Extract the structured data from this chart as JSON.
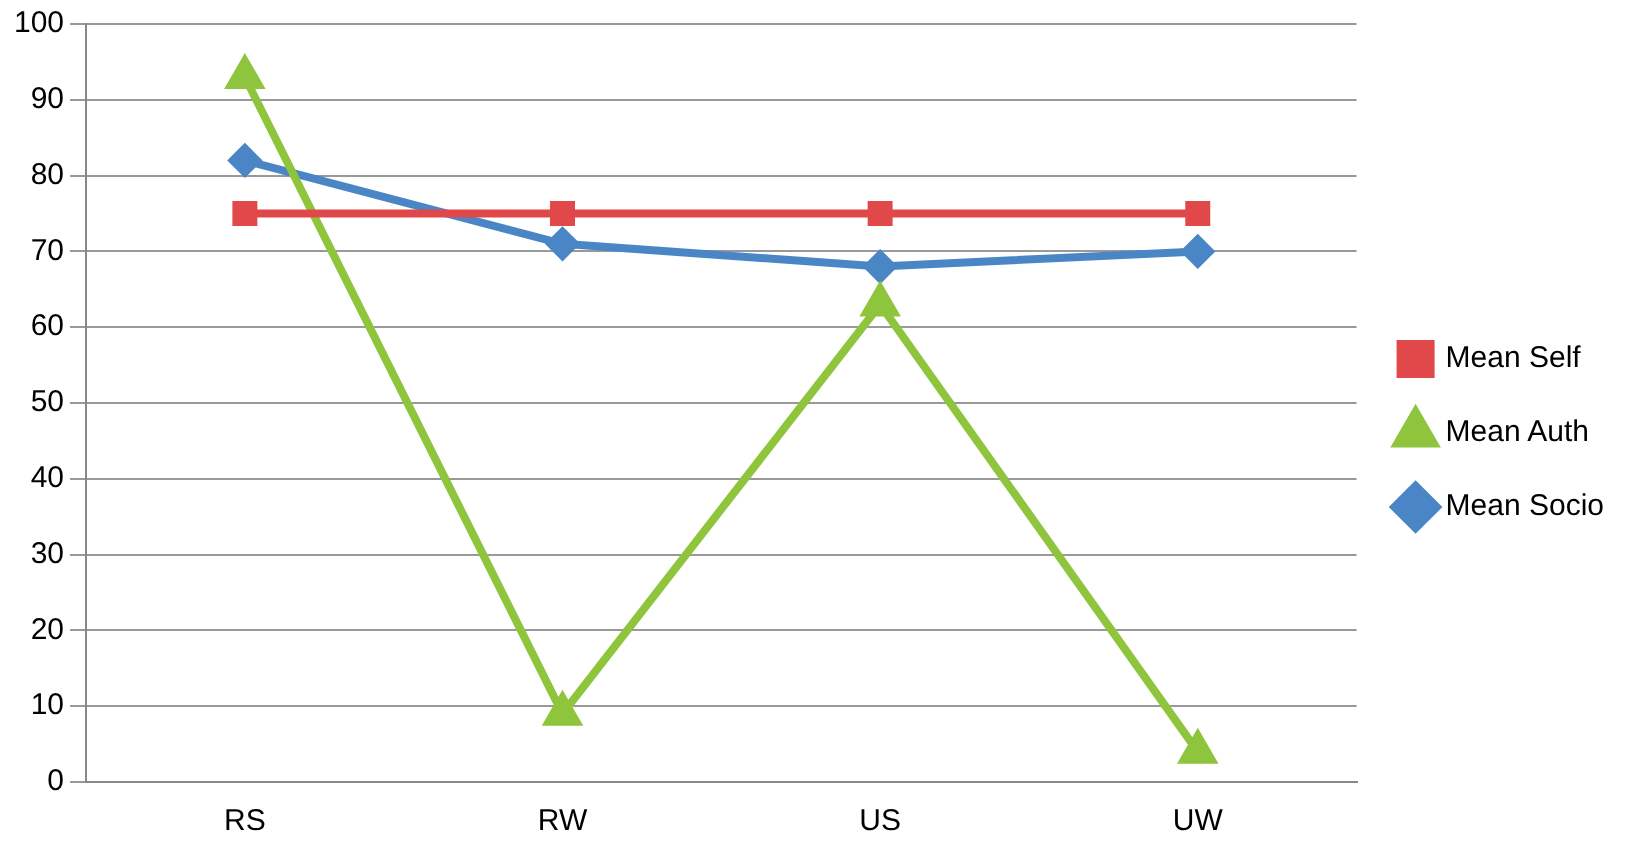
{
  "chart_data": {
    "type": "line",
    "categories": [
      "RS",
      "RW",
      "US",
      "UW"
    ],
    "series": [
      {
        "name": "Mean Self",
        "color": "#e0484a",
        "values": [
          75,
          75,
          75,
          75
        ],
        "marker": "square"
      },
      {
        "name": "Mean Auth",
        "color": "#8fc43d",
        "values": [
          93,
          9,
          63,
          4
        ],
        "marker": "triangle"
      },
      {
        "name": "Mean Socio",
        "color": "#4a86c5",
        "values": [
          82,
          71,
          68,
          70
        ],
        "marker": "diamond"
      }
    ],
    "ylim": [
      0,
      100
    ],
    "yticks": [
      0,
      10,
      20,
      30,
      40,
      50,
      60,
      70,
      80,
      90,
      100
    ],
    "grid": "y",
    "legend": "right",
    "line_style": "solid"
  }
}
